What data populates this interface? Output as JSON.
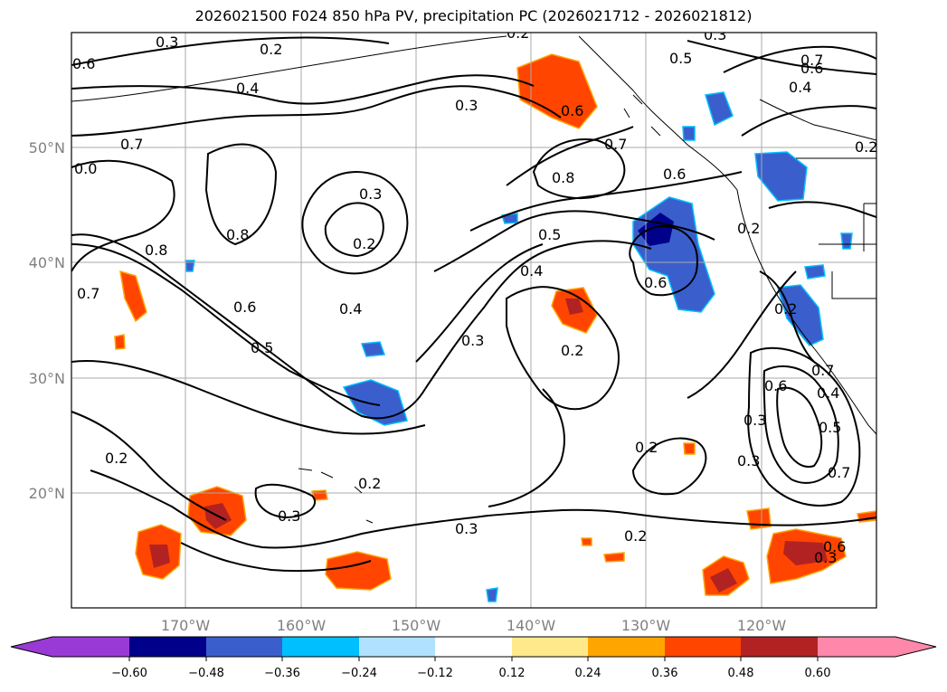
{
  "title": "2026021500 F024 850 hPa PV, precipitation PC (2026021712 - 2026021812)",
  "lon_labels": [
    "170°W",
    "160°W",
    "150°W",
    "140°W",
    "130°W",
    "120°W"
  ],
  "lat_labels": [
    "50°N",
    "40°N",
    "30°N",
    "20°N"
  ],
  "contour_labels": [
    "0.3",
    "0.2",
    "0.6",
    "0.4",
    "0.7",
    "0.0",
    "0.8",
    "0.3",
    "0.2",
    "0.8",
    "0.6",
    "0.5",
    "0.4",
    "0.3",
    "0.8",
    "0.6",
    "0.7",
    "0.5",
    "0.4",
    "0.3",
    "0.6",
    "0.2",
    "0.2",
    "0.7",
    "0.6",
    "0.4",
    "0.5",
    "0.2",
    "0.6",
    "0.7",
    "0.2",
    "0.3",
    "0.6",
    "0.3",
    "0.4",
    "0.5",
    "0.7",
    "0.2",
    "0.3",
    "0.3",
    "0.2",
    "0.2",
    "0.2",
    "0.3",
    "0.7",
    "0.6",
    "0.2",
    "0.3"
  ],
  "colorbar": {
    "ticks": [
      "−0.60",
      "−0.48",
      "−0.36",
      "−0.24",
      "−0.12",
      "0.12",
      "0.24",
      "0.36",
      "0.48",
      "0.60"
    ],
    "colors": [
      "#9a3ad6",
      "#00008b",
      "#3a5fcd",
      "#00bfff",
      "#b0e2ff",
      "#ffffff",
      "#ffe98a",
      "#ffa500",
      "#ff4500",
      "#b22222",
      "#ff88aa"
    ]
  },
  "chart_data": {
    "type": "map",
    "projection": "PlateCarree",
    "lon_range": [
      -180,
      -110
    ],
    "lat_range": [
      10,
      60
    ],
    "gridlines": true,
    "variable": "850 hPa PV contours and precipitation PC shading",
    "colorbar_levels": [
      -0.6,
      -0.48,
      -0.36,
      -0.24,
      -0.12,
      0.12,
      0.24,
      0.36,
      0.48,
      0.6
    ]
  }
}
